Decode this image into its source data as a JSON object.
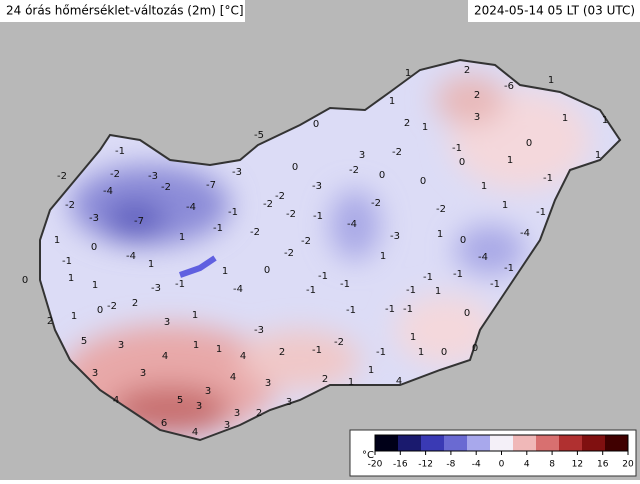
{
  "header": {
    "title": "24 órás hőmérséklet-változás (2m) [°C]",
    "time": "2024-05-14 05 LT (03 UTC)"
  },
  "stations": [
    1,
    2,
    -6,
    1,
    2,
    1,
    2,
    1,
    3,
    1,
    1,
    0,
    1,
    1,
    -1,
    0,
    -1,
    1,
    0,
    -2,
    1,
    -1,
    -4,
    -4,
    0,
    1,
    -1,
    -1,
    -1,
    -1,
    -2,
    -2,
    -3,
    -4,
    -2,
    -7,
    -3,
    -2,
    -3,
    -7,
    -4,
    -1,
    -2,
    -2,
    -2,
    -3,
    0,
    -2,
    0,
    -2,
    -1,
    -4,
    -3,
    -2,
    -1,
    1,
    -4,
    0,
    1,
    -1,
    1,
    0,
    1,
    1,
    -3,
    -1,
    1,
    -4,
    0,
    -2,
    -2,
    -1,
    -1,
    -1,
    1,
    -1,
    -1,
    1,
    -1,
    -1,
    -1,
    0,
    -5,
    3,
    -2,
    2,
    1,
    0,
    -2,
    2,
    3,
    1,
    1,
    1,
    5,
    3,
    4,
    4,
    2,
    3,
    3,
    4,
    3,
    2,
    3,
    4,
    5,
    3,
    3,
    2,
    3,
    6,
    4,
    3,
    -3,
    -2,
    -1,
    -1,
    0,
    1,
    0,
    0,
    1,
    1,
    4,
    1
  ],
  "colorbar": {
    "label": "°C",
    "lim": [
      -20,
      20
    ],
    "ticks": [
      -20,
      -16,
      -12,
      -8,
      -4,
      0,
      4,
      8,
      12,
      16,
      20
    ],
    "colors": [
      "#000018",
      "#1a1a6e",
      "#3a3ab4",
      "#6a6ad2",
      "#a8a8ec",
      "#f4f0f8",
      "#f0b8b8",
      "#d87070",
      "#b03030",
      "#801010",
      "#400000"
    ]
  }
}
